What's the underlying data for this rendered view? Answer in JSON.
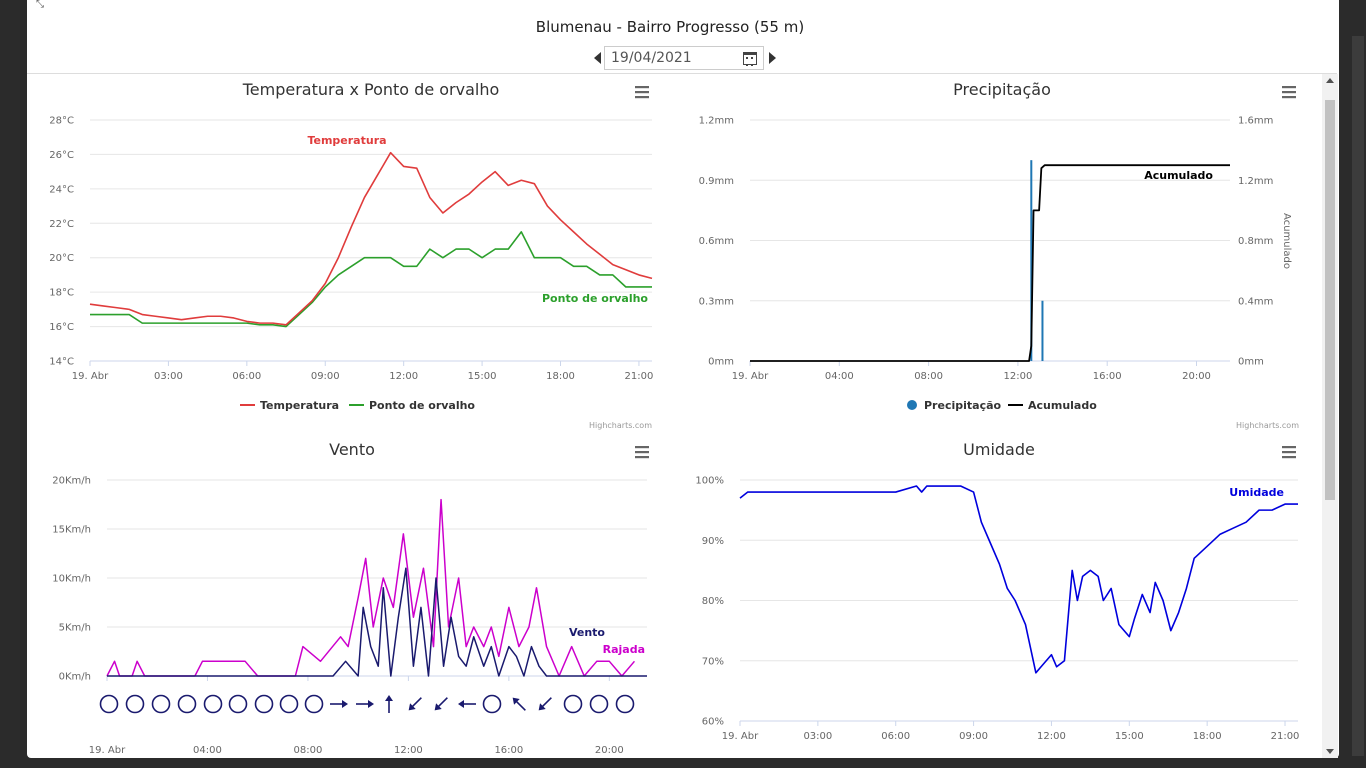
{
  "header": {
    "title": "Blumenau - Bairro Progresso (55 m)",
    "date_value": "19/04/2021"
  },
  "credits": "Highcharts.com",
  "icons": {
    "prev": "caret-left-icon",
    "next": "caret-right-icon",
    "calendar": "calendar-icon",
    "menu": "hamburger-menu-icon",
    "corner": "collapse-icon"
  },
  "colors": {
    "temperature": "#e03c3c",
    "dewpoint": "#2ca02c",
    "precip": "#1f77b4",
    "accumulated": "#000000",
    "wind": "#1a1a6e",
    "gust": "#cc00cc",
    "humidity": "#0000dd"
  },
  "chart_data": [
    {
      "type": "line",
      "title": "Temperatura x Ponto de orvalho",
      "x_ticks": [
        "19. Abr",
        "03:00",
        "06:00",
        "09:00",
        "12:00",
        "15:00",
        "18:00",
        "21:00"
      ],
      "y_ticks": [
        "14°C",
        "16°C",
        "18°C",
        "20°C",
        "22°C",
        "24°C",
        "26°C",
        "28°C"
      ],
      "ylim": [
        14,
        28
      ],
      "xlim_hours": [
        0,
        21.5
      ],
      "grid": true,
      "legend": "bottom-center",
      "series": [
        {
          "name": "Temperatura",
          "x": [
            0,
            0.5,
            1,
            1.5,
            2,
            2.5,
            3,
            3.5,
            4,
            4.5,
            5,
            5.5,
            6,
            6.5,
            7,
            7.5,
            8,
            8.5,
            9,
            9.5,
            10,
            10.5,
            11,
            11.5,
            12,
            12.5,
            13,
            13.5,
            14,
            14.5,
            15,
            15.5,
            16,
            16.5,
            17,
            17.5,
            18,
            18.5,
            19,
            19.5,
            20,
            20.5,
            21,
            21.5
          ],
          "y": [
            17.3,
            17.2,
            17.1,
            17.0,
            16.7,
            16.6,
            16.5,
            16.4,
            16.5,
            16.6,
            16.6,
            16.5,
            16.3,
            16.2,
            16.2,
            16.1,
            16.8,
            17.5,
            18.5,
            20.0,
            21.8,
            23.5,
            24.8,
            26.1,
            25.3,
            25.2,
            23.5,
            22.6,
            23.2,
            23.7,
            24.4,
            25.0,
            24.2,
            24.5,
            24.3,
            23.0,
            22.2,
            21.5,
            20.8,
            20.2,
            19.6,
            19.3,
            19.0,
            18.8
          ]
        },
        {
          "name": "Ponto de orvalho",
          "x": [
            0,
            0.5,
            1,
            1.5,
            2,
            2.5,
            3,
            3.5,
            4,
            4.5,
            5,
            5.5,
            6,
            6.5,
            7,
            7.5,
            8,
            8.5,
            9,
            9.5,
            10,
            10.5,
            11,
            11.5,
            12,
            12.5,
            13,
            13.5,
            14,
            14.5,
            15,
            15.5,
            16,
            16.5,
            17,
            17.5,
            18,
            18.5,
            19,
            19.5,
            20,
            20.5,
            21,
            21.5
          ],
          "y": [
            16.7,
            16.7,
            16.7,
            16.7,
            16.2,
            16.2,
            16.2,
            16.2,
            16.2,
            16.2,
            16.2,
            16.2,
            16.2,
            16.1,
            16.1,
            16.0,
            16.7,
            17.4,
            18.3,
            19.0,
            19.5,
            20.0,
            20.0,
            20.0,
            19.5,
            19.5,
            20.5,
            20.0,
            20.5,
            20.5,
            20.0,
            20.5,
            20.5,
            21.5,
            20.0,
            20.0,
            20.0,
            19.5,
            19.5,
            19.0,
            19.0,
            18.3,
            18.3,
            18.3
          ]
        }
      ]
    },
    {
      "type": "line",
      "title": "Precipitação",
      "x_ticks": [
        "19. Abr",
        "04:00",
        "08:00",
        "12:00",
        "16:00",
        "20:00"
      ],
      "y_ticks": [
        "0mm",
        "0.3mm",
        "0.6mm",
        "0.9mm",
        "1.2mm"
      ],
      "y2_ticks": [
        "0mm",
        "0.4mm",
        "0.8mm",
        "1.2mm",
        "1.6mm"
      ],
      "y2_label": "Acumulado",
      "ylim": [
        0,
        1.2
      ],
      "y2lim": [
        0,
        1.6
      ],
      "xlim_hours": [
        0,
        21.5
      ],
      "legend": "bottom-center",
      "series": [
        {
          "name": "Precipitação",
          "type": "column",
          "x": [
            12.6,
            13.1
          ],
          "y": [
            1.0,
            0.3
          ]
        },
        {
          "name": "Acumulado",
          "x": [
            0,
            12.5,
            12.6,
            12.7,
            12.95,
            13.05,
            13.2,
            21.5
          ],
          "y": [
            0,
            0,
            0.1,
            1.0,
            1.0,
            1.28,
            1.3,
            1.3
          ]
        }
      ]
    },
    {
      "type": "line",
      "title": "Vento",
      "x_ticks": [
        "19. Abr",
        "04:00",
        "08:00",
        "12:00",
        "16:00",
        "20:00"
      ],
      "y_ticks": [
        "0Km/h",
        "5Km/h",
        "10Km/h",
        "15Km/h",
        "20Km/h"
      ],
      "ylim": [
        0,
        20
      ],
      "xlim_hours": [
        0,
        21.5
      ],
      "series": [
        {
          "name": "Vento",
          "x": [
            0,
            8.5,
            9,
            9.5,
            10,
            10.2,
            10.5,
            10.8,
            11,
            11.3,
            11.6,
            11.9,
            12.2,
            12.5,
            12.8,
            13.1,
            13.4,
            13.7,
            14,
            14.3,
            14.6,
            15,
            15.3,
            15.6,
            16,
            16.3,
            16.6,
            16.9,
            17.2,
            17.5,
            18,
            18.5,
            19,
            21.5
          ],
          "y": [
            0,
            0,
            0,
            1.5,
            0,
            7,
            3,
            1,
            9,
            0,
            6,
            11,
            1,
            7,
            0,
            10,
            1,
            6,
            2,
            1,
            4,
            1,
            3,
            0,
            3,
            2,
            0,
            3,
            1,
            0,
            0,
            0,
            0,
            0
          ]
        },
        {
          "name": "Rajada",
          "x": [
            0,
            0.3,
            0.5,
            1.0,
            1.2,
            1.5,
            3.5,
            3.8,
            5.5,
            6,
            7.5,
            7.8,
            8.5,
            9.3,
            9.6,
            10,
            10.3,
            10.6,
            11,
            11.4,
            11.8,
            12.2,
            12.6,
            13,
            13.3,
            13.6,
            14,
            14.3,
            14.6,
            15,
            15.3,
            15.6,
            16,
            16.4,
            16.8,
            17.1,
            17.5,
            18,
            18.5,
            19,
            19.5,
            20,
            20.5,
            21
          ],
          "y": [
            0,
            1.5,
            0,
            0,
            1.5,
            0,
            0,
            1.5,
            1.5,
            0,
            0,
            3,
            1.5,
            4,
            3,
            8,
            12,
            5,
            10,
            7,
            14.5,
            6,
            11,
            3,
            18,
            5,
            10,
            3,
            5,
            3,
            5,
            2,
            7,
            3,
            5,
            9,
            3,
            0,
            3,
            0,
            1.5,
            1.5,
            0,
            1.5
          ]
        }
      ]
    },
    {
      "type": "line",
      "title": "Umidade",
      "x_ticks": [
        "19. Abr",
        "03:00",
        "06:00",
        "09:00",
        "12:00",
        "15:00",
        "18:00",
        "21:00"
      ],
      "y_ticks": [
        "60%",
        "70%",
        "80%",
        "90%",
        "100%"
      ],
      "ylim": [
        60,
        100
      ],
      "xlim_hours": [
        0,
        21.5
      ],
      "series": [
        {
          "name": "Umidade",
          "x": [
            0,
            0.3,
            1,
            2,
            3,
            4,
            5,
            6,
            6.8,
            7,
            7.2,
            7.5,
            8,
            8.5,
            9,
            9.3,
            9.6,
            10,
            10.3,
            10.6,
            11,
            11.2,
            11.4,
            11.6,
            11.8,
            12,
            12.2,
            12.5,
            12.8,
            13,
            13.2,
            13.5,
            13.8,
            14,
            14.3,
            14.6,
            15,
            15.2,
            15.5,
            15.8,
            16,
            16.3,
            16.6,
            16.9,
            17.2,
            17.5,
            18,
            18.5,
            19,
            19.5,
            20,
            20.5,
            21,
            21.5
          ],
          "y": [
            97,
            98,
            98,
            98,
            98,
            98,
            98,
            98,
            99,
            98,
            99,
            99,
            99,
            99,
            98,
            93,
            90,
            86,
            82,
            80,
            76,
            72,
            68,
            69,
            70,
            71,
            69,
            70,
            85,
            80,
            84,
            85,
            84,
            80,
            82,
            76,
            74,
            77,
            81,
            78,
            83,
            80,
            75,
            78,
            82,
            87,
            89,
            91,
            92,
            93,
            95,
            95,
            96,
            96
          ]
        }
      ]
    }
  ],
  "wind_directions": [
    "calm",
    "calm",
    "calm",
    "calm",
    "calm",
    "calm",
    "calm",
    "calm",
    "calm",
    "E",
    "E",
    "N",
    "SW",
    "SW",
    "W",
    "calm",
    "NW",
    "SW",
    "calm",
    "calm",
    "calm"
  ]
}
